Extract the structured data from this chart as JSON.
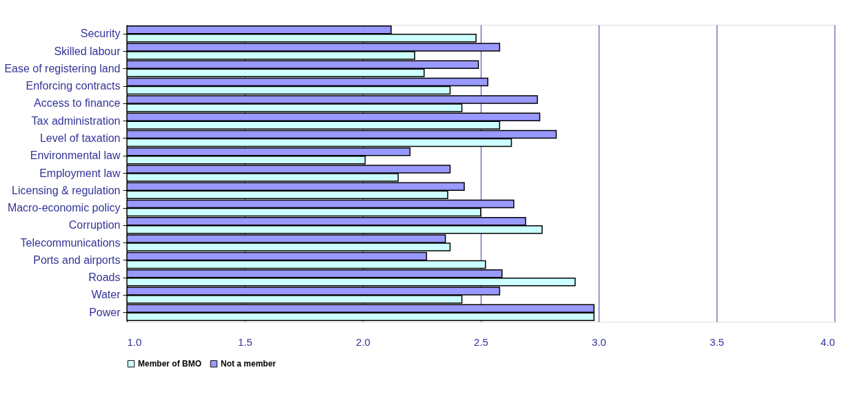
{
  "chart_data": {
    "type": "bar",
    "orientation": "horizontal",
    "categories": [
      "Security",
      "Skilled labour",
      "Ease of registering land",
      "Enforcing contracts",
      "Access to finance",
      "Tax administration",
      "Level of taxation",
      "Environmental law",
      "Employment law",
      "Licensing & regulation",
      "Macro-economic policy",
      "Corruption",
      "Telecommunications",
      "Ports and airports",
      "Roads",
      "Water",
      "Power"
    ],
    "series": [
      {
        "name": "Member of BMO",
        "color": "#ccffff",
        "values": [
          2.48,
          2.22,
          2.26,
          2.37,
          2.42,
          2.58,
          2.63,
          2.01,
          2.15,
          2.36,
          2.5,
          2.76,
          2.37,
          2.52,
          2.9,
          2.42,
          2.98
        ]
      },
      {
        "name": "Not a member",
        "color": "#9999ff",
        "values": [
          2.12,
          2.58,
          2.49,
          2.53,
          2.74,
          2.75,
          2.82,
          2.2,
          2.37,
          2.43,
          2.64,
          2.69,
          2.35,
          2.27,
          2.59,
          2.58,
          2.98
        ]
      }
    ],
    "xlim": [
      1.0,
      4.0
    ],
    "xticks": [
      {
        "value": 1.0,
        "label": "1.0"
      },
      {
        "value": 1.5,
        "label": "1.5"
      },
      {
        "value": 2.0,
        "label": "2.0"
      },
      {
        "value": 2.5,
        "label": "2.5"
      },
      {
        "value": 3.0,
        "label": "3.0"
      },
      {
        "value": 3.5,
        "label": "3.5"
      },
      {
        "value": 4.0,
        "label": "4.0"
      }
    ],
    "grid": "x",
    "legend": "bottom"
  }
}
